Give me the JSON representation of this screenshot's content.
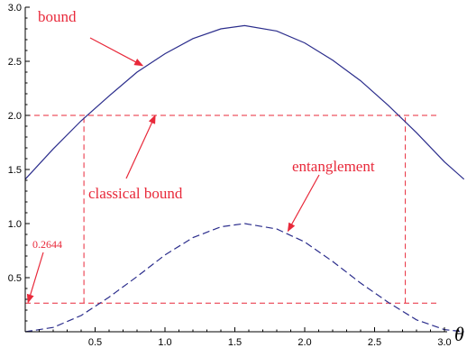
{
  "chart_data": {
    "type": "line",
    "x_variable": "θ",
    "xlim": [
      0,
      3.25
    ],
    "ylim": [
      0,
      3.0
    ],
    "x_ticks": [
      0.5,
      1.0,
      1.5,
      2.0,
      2.5,
      3.0
    ],
    "y_ticks": [
      0.5,
      1.0,
      1.5,
      2.0,
      2.5,
      3.0
    ],
    "x_tick_labels": [
      "0.5",
      "1.0",
      "1.5",
      "2.0",
      "2.5",
      "3.0"
    ],
    "y_tick_labels": [
      "0.5",
      "1.0",
      "1.5",
      "2.0",
      "2.5",
      "3.0"
    ],
    "grid": false,
    "series": [
      {
        "label_key": "bound",
        "style": "solid",
        "color": "#2b2d8c",
        "x": [
          0.0,
          0.2,
          0.4,
          0.6,
          0.8,
          1.0,
          1.2,
          1.4,
          1.57,
          1.8,
          2.0,
          2.2,
          2.4,
          2.6,
          2.8,
          3.0,
          3.14
        ],
        "y": [
          1.41,
          1.69,
          1.95,
          2.18,
          2.4,
          2.57,
          2.71,
          2.8,
          2.83,
          2.78,
          2.67,
          2.51,
          2.32,
          2.09,
          1.84,
          1.57,
          1.41
        ]
      },
      {
        "label_key": "entanglement",
        "style": "dashed",
        "color": "#2b2d8c",
        "x": [
          0.0,
          0.2,
          0.4,
          0.6,
          0.8,
          1.0,
          1.2,
          1.4,
          1.57,
          1.8,
          2.0,
          2.2,
          2.4,
          2.6,
          2.8,
          3.0,
          3.14
        ],
        "y": [
          0.0,
          0.04,
          0.15,
          0.32,
          0.51,
          0.71,
          0.87,
          0.97,
          1.0,
          0.95,
          0.83,
          0.65,
          0.45,
          0.27,
          0.11,
          0.02,
          0.0
        ]
      }
    ],
    "reference_lines": [
      {
        "axis": "y",
        "value": 2.0,
        "color": "#e8293a",
        "style": "dashed"
      },
      {
        "axis": "y",
        "value": 0.2644,
        "color": "#e8293a",
        "style": "dashed"
      },
      {
        "axis": "x",
        "value": 0.42,
        "y_from": 0.2644,
        "y_to": 2.0,
        "color": "#e8293a",
        "style": "dashed"
      },
      {
        "axis": "x",
        "value": 2.72,
        "y_from": 0.2644,
        "y_to": 2.0,
        "color": "#e8293a",
        "style": "dashed"
      }
    ],
    "annotations": {
      "bound": {
        "text": "bound",
        "arrow_to": [
          0.84,
          2.46
        ]
      },
      "classical_bound": {
        "text": "classical bound",
        "arrow_to": [
          0.93,
          2.0
        ]
      },
      "entanglement": {
        "text": "entanglement",
        "arrow_to": [
          1.88,
          0.93
        ]
      },
      "value_0_2644": {
        "text": "0.2644",
        "arrow_to": [
          0.02,
          0.27
        ]
      }
    },
    "colors": {
      "curve": "#2b2d8c",
      "annotation": "#e8293a",
      "axis": "#000000"
    }
  }
}
